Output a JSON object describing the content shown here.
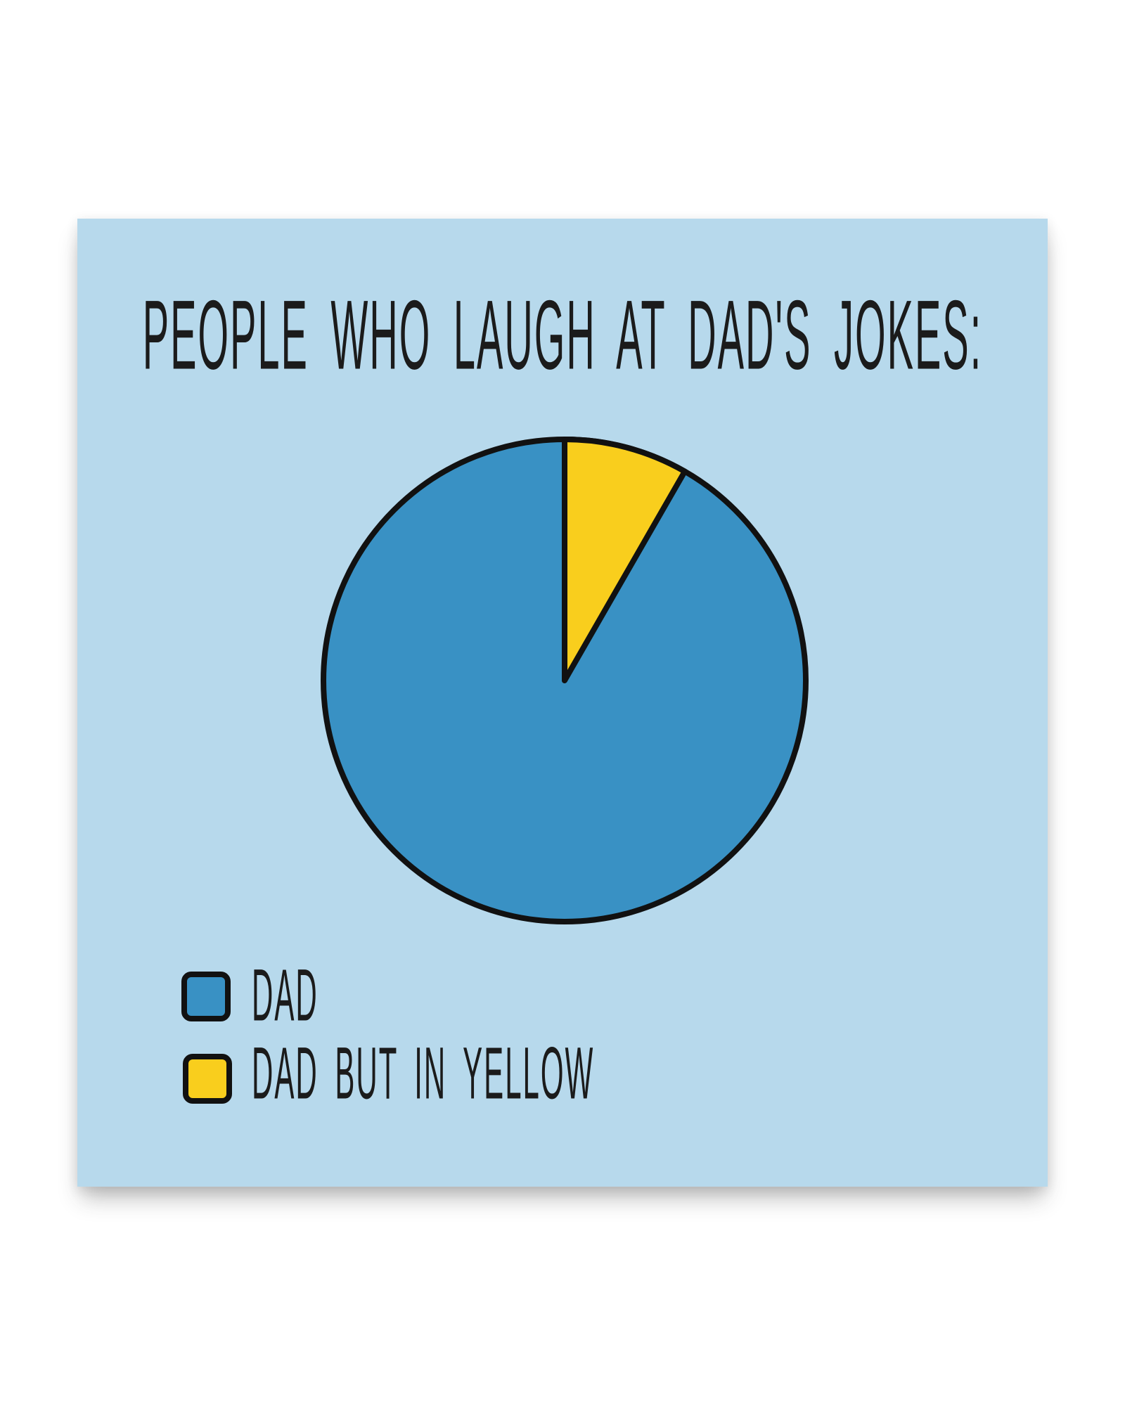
{
  "card": {
    "title": "PEOPLE WHO LAUGH AT DAD'S JOKES:",
    "background": "#b7d9ec",
    "page_background": "#ffffff",
    "text_color": "#1b1b1b"
  },
  "chart_data": {
    "type": "pie",
    "title": "PEOPLE WHO LAUGH AT DAD'S JOKES:",
    "labels": [
      "DAD",
      "DAD BUT IN YELLOW"
    ],
    "values": [
      91.7,
      8.3
    ],
    "colors": [
      "#3991c4",
      "#f9ce1d"
    ],
    "outline_color": "#111111",
    "start_angle_deg": 0,
    "small_slice_arc_deg": 30,
    "small_slice_position": "starts at 12 o'clock, sweeps clockwise",
    "legend_position": "bottom-left",
    "grid": false
  },
  "legend": {
    "items": [
      {
        "label": "DAD",
        "color": "#3991c4"
      },
      {
        "label": "DAD BUT IN YELLOW",
        "color": "#f9ce1d"
      }
    ]
  }
}
